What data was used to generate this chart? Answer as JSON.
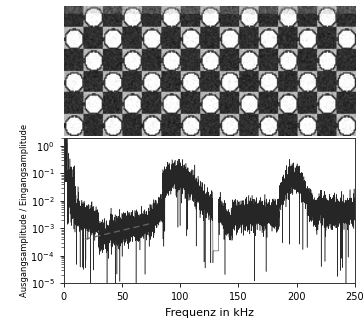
{
  "title": "",
  "xlabel": "Frequenz in kHz",
  "ylabel": "Ausgangsamplitude / Eingangsamplitude",
  "xlim": [
    0,
    250
  ],
  "ylim_log": [
    1e-05,
    2.0
  ],
  "xticks": [
    0,
    50,
    100,
    150,
    200,
    250
  ],
  "line_color": "#1a1a1a",
  "dashed_color": "#666666",
  "background_color": "#ffffff",
  "fig_width": 3.64,
  "fig_height": 3.2,
  "dpi": 100,
  "ylabel_fontsize": 6.0,
  "xlabel_fontsize": 8,
  "tick_fontsize": 7
}
